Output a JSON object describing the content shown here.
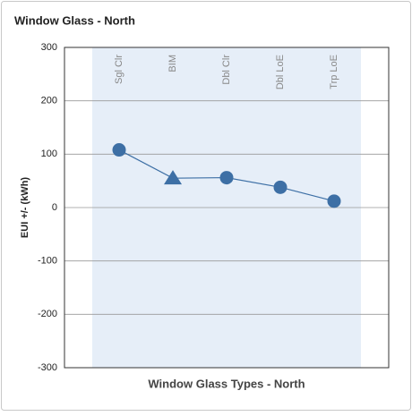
{
  "chart_data": {
    "type": "line",
    "title": "Window Glass - North",
    "xlabel": "Window Glass Types - North",
    "ylabel": "EUI +/- (kWh)",
    "categories": [
      "Sgl Clr",
      "BIM",
      "Dbl Clr",
      "Dbl LoE",
      "Trp LoE"
    ],
    "series": [
      {
        "color": "#3d6fa5",
        "values": [
          108,
          55,
          56,
          38,
          12
        ],
        "markers": [
          "circle",
          "triangle",
          "circle",
          "circle",
          "circle"
        ]
      }
    ],
    "ylim": [
      -300,
      300
    ],
    "yticks": [
      -300,
      -200,
      -100,
      0,
      100,
      200,
      300
    ],
    "grid": true
  }
}
